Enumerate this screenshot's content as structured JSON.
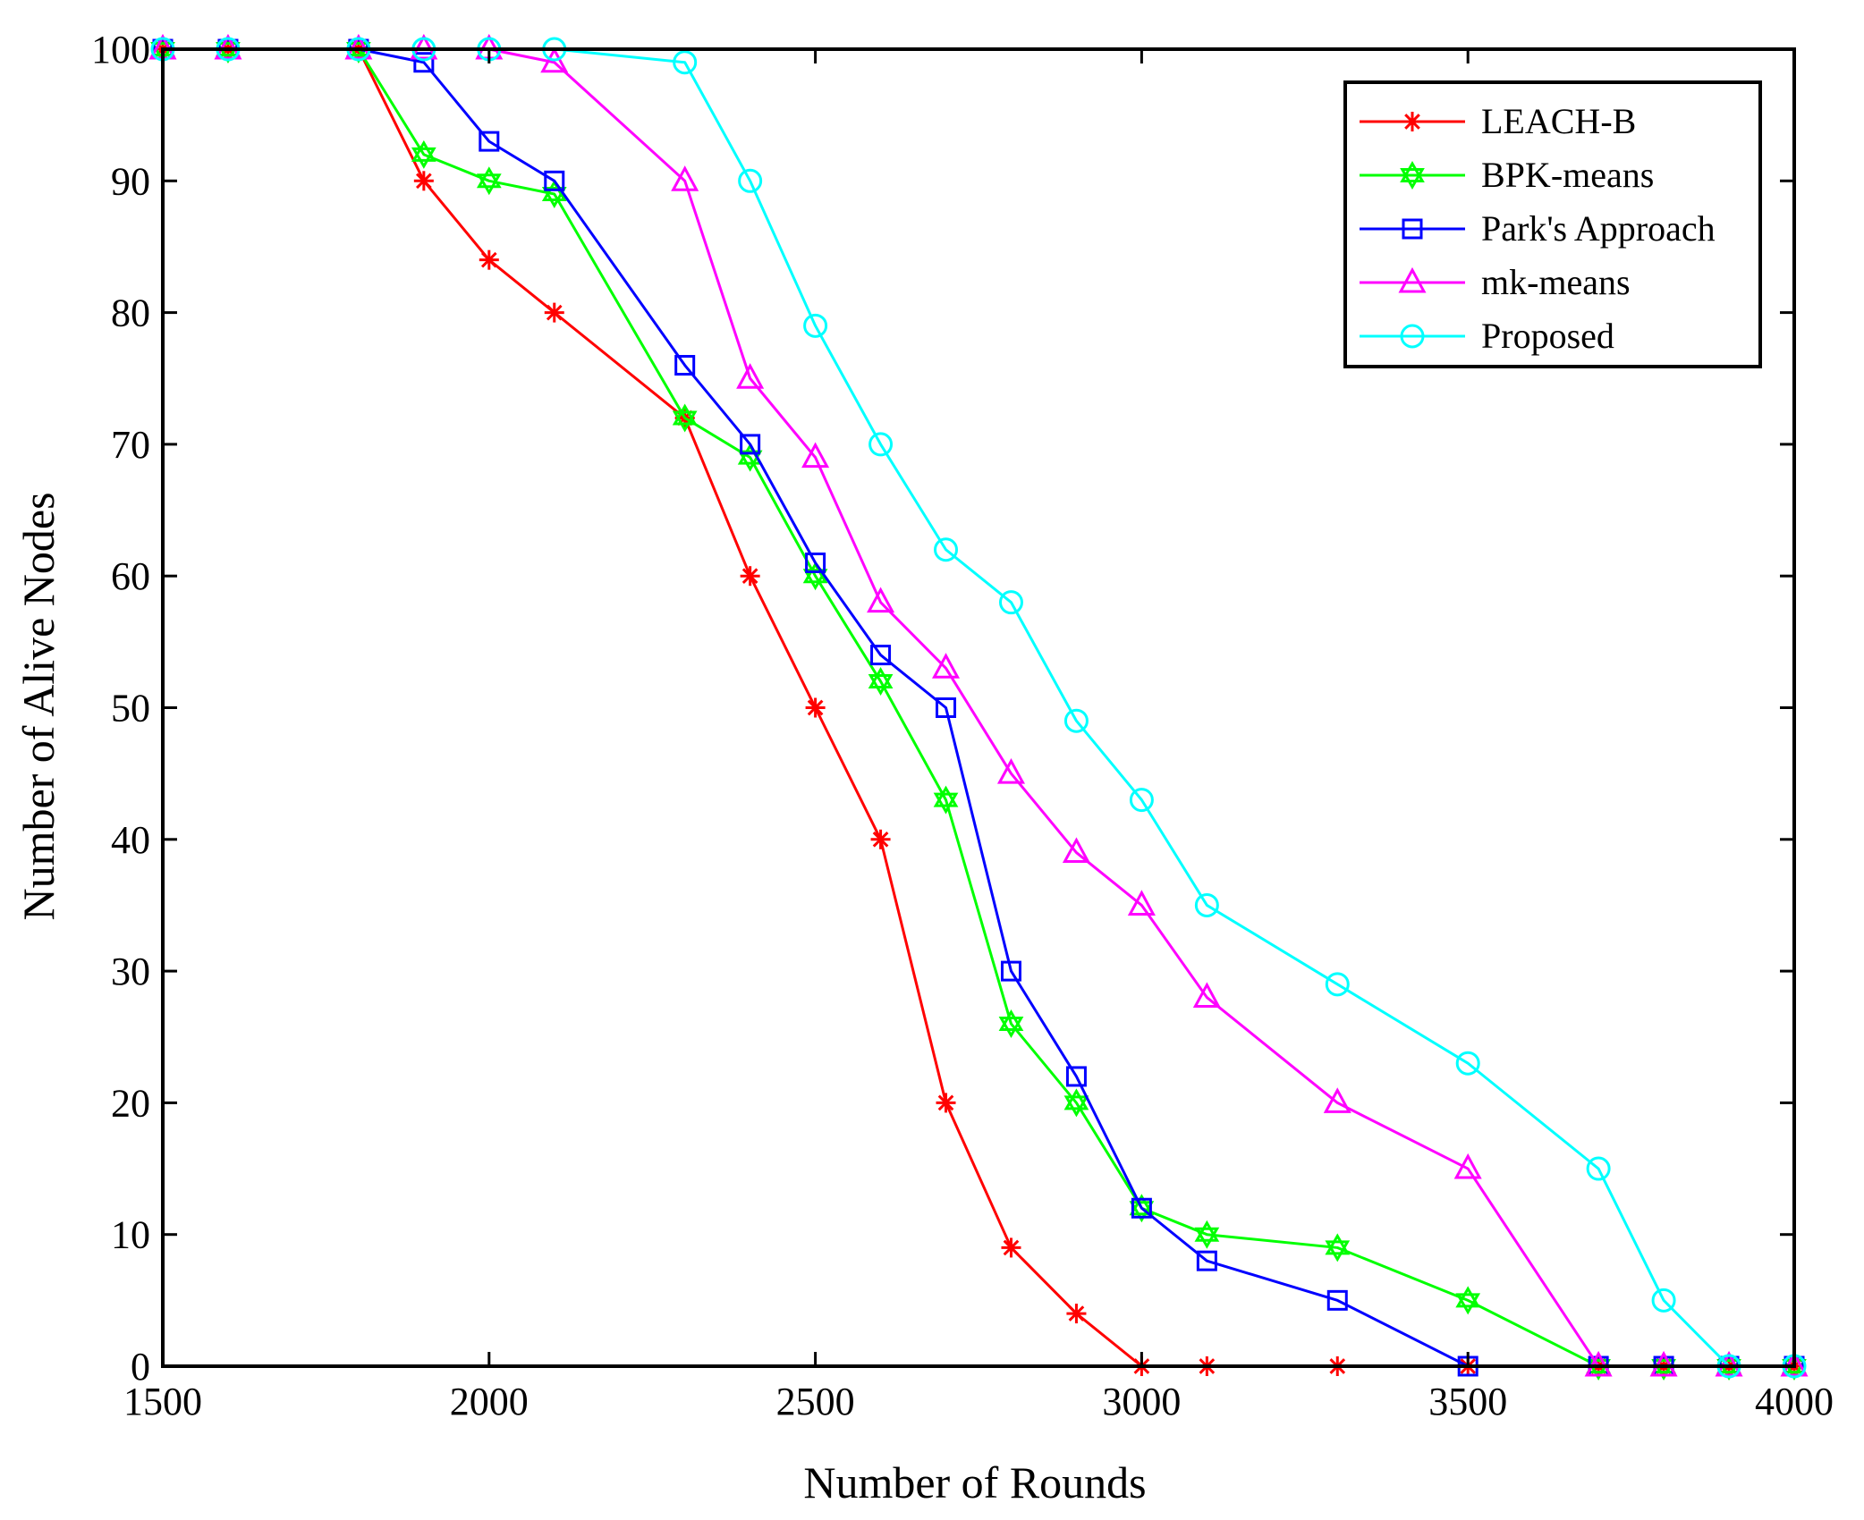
{
  "chart_data": {
    "type": "line",
    "title": "",
    "xlabel": "Number of Rounds",
    "ylabel": "Number of Alive Nodes",
    "xlim": [
      1500,
      4000
    ],
    "ylim": [
      0,
      100
    ],
    "xticks": [
      1500,
      2000,
      2500,
      3000,
      3500,
      4000
    ],
    "yticks": [
      0,
      10,
      20,
      30,
      40,
      50,
      60,
      70,
      80,
      90,
      100
    ],
    "grid": false,
    "legend_position": "top-right",
    "series": [
      {
        "name": "LEACH-B",
        "color": "#ff0000",
        "marker": "asterisk",
        "x": [
          1500,
          1600,
          1800,
          1900,
          2000,
          2100,
          2300,
          2400,
          2500,
          2600,
          2700,
          2800,
          2900,
          3000,
          3100,
          3300,
          3500,
          3700,
          3800,
          3900,
          4000
        ],
        "y": [
          100,
          100,
          100,
          90,
          84,
          80,
          72,
          60,
          50,
          40,
          20,
          9,
          4,
          0,
          0,
          0,
          0,
          0,
          0,
          0,
          0
        ]
      },
      {
        "name": "BPK-means",
        "color": "#00ff00",
        "marker": "hexagram",
        "x": [
          1500,
          1600,
          1800,
          1900,
          2000,
          2100,
          2300,
          2400,
          2500,
          2600,
          2700,
          2800,
          2900,
          3000,
          3100,
          3300,
          3500,
          3700,
          3800,
          3900,
          4000
        ],
        "y": [
          100,
          100,
          100,
          92,
          90,
          89,
          72,
          69,
          60,
          52,
          43,
          26,
          20,
          12,
          10,
          9,
          5,
          0,
          0,
          0,
          0
        ]
      },
      {
        "name": "Park's Approach",
        "color": "#0000ff",
        "marker": "square",
        "x": [
          1500,
          1600,
          1800,
          1900,
          2000,
          2100,
          2300,
          2400,
          2500,
          2600,
          2700,
          2800,
          2900,
          3000,
          3100,
          3300,
          3500,
          3700,
          3800,
          3900,
          4000
        ],
        "y": [
          100,
          100,
          100,
          99,
          93,
          90,
          76,
          70,
          61,
          54,
          50,
          30,
          22,
          12,
          8,
          5,
          0,
          0,
          0,
          0,
          0
        ]
      },
      {
        "name": "mk-means",
        "color": "#ff00ff",
        "marker": "triangle",
        "x": [
          1500,
          1600,
          1800,
          1900,
          2000,
          2100,
          2300,
          2400,
          2500,
          2600,
          2700,
          2800,
          2900,
          3000,
          3100,
          3300,
          3500,
          3700,
          3800,
          3900,
          4000
        ],
        "y": [
          100,
          100,
          100,
          100,
          100,
          99,
          90,
          75,
          69,
          58,
          53,
          45,
          39,
          35,
          28,
          20,
          15,
          0,
          0,
          0,
          0
        ]
      },
      {
        "name": "Proposed",
        "color": "#00ffff",
        "marker": "circle",
        "x": [
          1500,
          1600,
          1800,
          1900,
          2000,
          2100,
          2300,
          2400,
          2500,
          2600,
          2700,
          2800,
          2900,
          3000,
          3100,
          3300,
          3500,
          3700,
          3800,
          3900,
          4000
        ],
        "y": [
          100,
          100,
          100,
          100,
          100,
          100,
          99,
          90,
          79,
          70,
          62,
          58,
          49,
          43,
          35,
          29,
          23,
          15,
          5,
          0,
          0
        ]
      }
    ]
  }
}
